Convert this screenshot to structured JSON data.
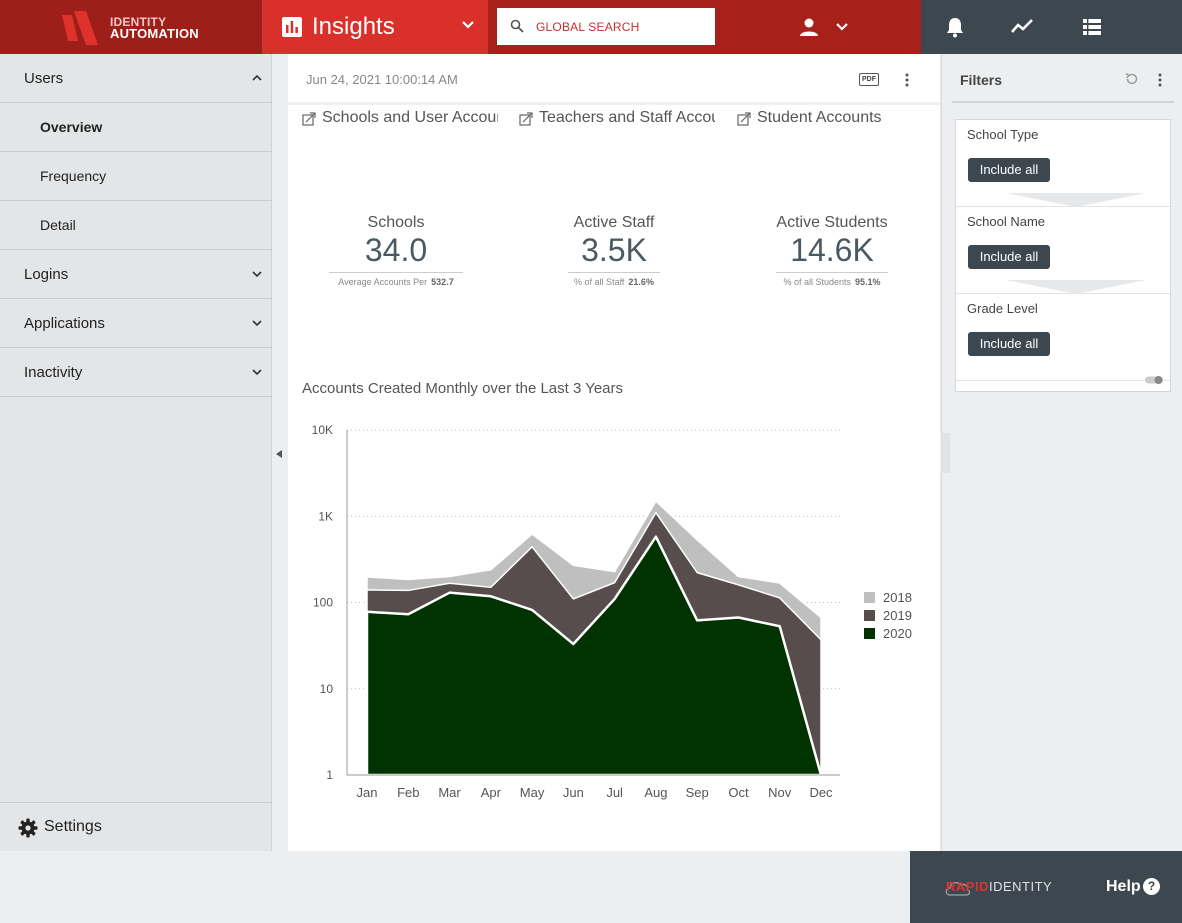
{
  "brand": {
    "line1": "IDENTITY",
    "line2": "AUTOMATION"
  },
  "app": {
    "title": "Insights"
  },
  "search": {
    "placeholder": "GLOBAL SEARCH"
  },
  "topbar_icons": [
    "notifications-icon",
    "trending-icon",
    "list-icon"
  ],
  "nav": {
    "items": [
      {
        "label": "Users",
        "expanded": true
      },
      {
        "label": "Overview",
        "sub": true,
        "active": true
      },
      {
        "label": "Frequency",
        "sub": true
      },
      {
        "label": "Detail",
        "sub": true
      },
      {
        "label": "Logins",
        "expanded": false
      },
      {
        "label": "Applications",
        "expanded": false
      },
      {
        "label": "Inactivity",
        "expanded": false
      }
    ],
    "settings_label": "Settings"
  },
  "main": {
    "timestamp": "Jun 24, 2021 10:00:14 AM",
    "pdf_label": "PDF",
    "tabs": [
      "Schools and User Accoun",
      "Teachers and Staff Accou",
      "Student Accounts"
    ],
    "kpis": [
      {
        "title": "Schools",
        "value": "34.0",
        "sub_label": "Average Accounts Per",
        "sub_value": "532.7"
      },
      {
        "title": "Active Staff",
        "value": "3.5K",
        "sub_label": "% of all Staff",
        "sub_value": "21.6%"
      },
      {
        "title": "Active Students",
        "value": "14.6K",
        "sub_label": "% of all Students",
        "sub_value": "95.1%"
      }
    ],
    "chart_title": "Accounts Created Monthly over the Last 3 Years"
  },
  "chart_data": {
    "type": "area",
    "stacked": true,
    "title": "Accounts Created Monthly over the Last 3 Years",
    "yscale": "log",
    "ylim": [
      1,
      10000
    ],
    "yticks": [
      {
        "value": 1,
        "label": "1"
      },
      {
        "value": 10,
        "label": "10"
      },
      {
        "value": 100,
        "label": "100"
      },
      {
        "value": 1000,
        "label": "1K"
      },
      {
        "value": 10000,
        "label": "10K"
      }
    ],
    "categories": [
      "Jan",
      "Feb",
      "Mar",
      "Apr",
      "May",
      "Jun",
      "Jul",
      "Aug",
      "Sep",
      "Oct",
      "Nov",
      "Dec"
    ],
    "series": [
      {
        "name": "2020",
        "color": "#003300",
        "values": [
          78,
          73,
          130,
          118,
          82,
          33,
          110,
          580,
          62,
          67,
          53,
          1
        ]
      },
      {
        "name": "2019",
        "color": "#574d4d",
        "values": [
          62,
          65,
          37,
          32,
          360,
          77,
          60,
          520,
          160,
          93,
          60,
          36
        ]
      },
      {
        "name": "2018",
        "color": "#bfbfbf",
        "values": [
          58,
          47,
          33,
          90,
          180,
          160,
          58,
          400,
          310,
          40,
          55,
          30
        ]
      }
    ],
    "legend": {
      "position": "right",
      "order": [
        "2018",
        "2019",
        "2020"
      ]
    },
    "grid": true
  },
  "filters": {
    "title": "Filters",
    "groups": [
      {
        "label": "School Type",
        "value": "Include all"
      },
      {
        "label": "School Name",
        "value": "Include all"
      },
      {
        "label": "Grade Level",
        "value": "Include all"
      }
    ]
  },
  "footer": {
    "brand_rapid": "RAPID",
    "brand_identity": "IDENTITY",
    "help_label": "Help",
    "help_icon_glyph": "?"
  }
}
